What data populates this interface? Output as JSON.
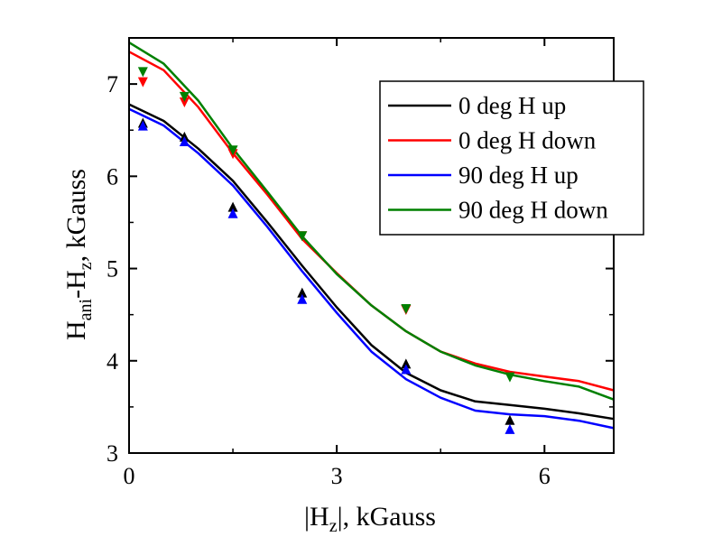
{
  "chart_data": {
    "type": "line",
    "title": "",
    "xlabel": {
      "main": "|H",
      "sub": "z",
      "rest": "|, kGauss"
    },
    "ylabel": {
      "main": "H",
      "sub1": "ani",
      "mid": "-H",
      "sub2": "z",
      "rest": ", kGauss"
    },
    "xlim": [
      0,
      7
    ],
    "ylim": [
      3,
      7.5
    ],
    "xticks": [
      0,
      3,
      6
    ],
    "yticks": [
      3,
      4,
      5,
      6,
      7
    ],
    "grid": false,
    "legend_position": "top-right",
    "series": [
      {
        "name": "0 deg H up",
        "color": "#000000",
        "marker": "triangle-up",
        "points": {
          "x": [
            0.2,
            0.8,
            1.5,
            2.5,
            4.0,
            5.5
          ],
          "y": [
            6.58,
            6.43,
            5.67,
            4.74,
            3.97,
            3.36
          ]
        },
        "line": {
          "x": [
            0,
            0.5,
            1,
            1.5,
            2,
            2.5,
            3,
            3.5,
            4,
            4.5,
            5,
            5.5,
            6,
            6.5,
            7
          ],
          "y": [
            6.78,
            6.6,
            6.3,
            5.95,
            5.5,
            5.03,
            4.58,
            4.17,
            3.87,
            3.68,
            3.56,
            3.52,
            3.48,
            3.43,
            3.37
          ]
        }
      },
      {
        "name": "0 deg H down",
        "color": "#ff0000",
        "marker": "triangle-down",
        "points": {
          "x": [
            0.2,
            0.8,
            1.5,
            2.5,
            4.0,
            5.5
          ],
          "y": [
            7.02,
            6.8,
            6.24,
            5.35,
            4.55,
            3.83
          ]
        },
        "line": {
          "x": [
            0,
            0.5,
            1,
            1.5,
            2,
            2.5,
            3,
            3.5,
            4,
            4.5,
            5,
            5.5,
            6,
            6.5,
            7
          ],
          "y": [
            7.35,
            7.15,
            6.75,
            6.25,
            5.8,
            5.32,
            4.95,
            4.6,
            4.32,
            4.1,
            3.97,
            3.88,
            3.83,
            3.78,
            3.68
          ]
        }
      },
      {
        "name": "90 deg H up",
        "color": "#0000ff",
        "marker": "triangle-up",
        "points": {
          "x": [
            0.2,
            0.8,
            1.5,
            2.5,
            4.0,
            5.5
          ],
          "y": [
            6.55,
            6.38,
            5.6,
            4.67,
            3.91,
            3.26
          ]
        },
        "line": {
          "x": [
            0,
            0.5,
            1,
            1.5,
            2,
            2.5,
            3,
            3.5,
            4,
            4.5,
            5,
            5.5,
            6,
            6.5,
            7
          ],
          "y": [
            6.73,
            6.55,
            6.25,
            5.9,
            5.45,
            4.97,
            4.52,
            4.1,
            3.8,
            3.6,
            3.46,
            3.42,
            3.4,
            3.35,
            3.27
          ]
        }
      },
      {
        "name": "90 deg H down",
        "color": "#008000",
        "marker": "triangle-down",
        "points": {
          "x": [
            0.2,
            0.8,
            1.5,
            2.5,
            4.0,
            5.5
          ],
          "y": [
            7.13,
            6.86,
            6.28,
            5.35,
            4.56,
            3.82
          ]
        },
        "line": {
          "x": [
            0,
            0.5,
            1,
            1.5,
            2,
            2.5,
            3,
            3.5,
            4,
            4.5,
            5,
            5.5,
            6,
            6.5,
            7
          ],
          "y": [
            7.45,
            7.22,
            6.82,
            6.3,
            5.83,
            5.35,
            4.94,
            4.6,
            4.32,
            4.1,
            3.95,
            3.85,
            3.78,
            3.72,
            3.58
          ]
        }
      }
    ]
  }
}
